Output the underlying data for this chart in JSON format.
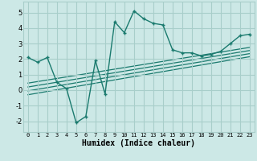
{
  "xlabel": "Humidex (Indice chaleur)",
  "bg_color": "#cce8e6",
  "grid_color": "#a8ceca",
  "line_color": "#1a7a6e",
  "xlim": [
    -0.5,
    23.5
  ],
  "ylim": [
    -2.7,
    5.7
  ],
  "xticks": [
    0,
    1,
    2,
    3,
    4,
    5,
    6,
    7,
    8,
    9,
    10,
    11,
    12,
    13,
    14,
    15,
    16,
    17,
    18,
    19,
    20,
    21,
    22,
    23
  ],
  "yticks": [
    -2,
    -1,
    0,
    1,
    2,
    3,
    4,
    5
  ],
  "main_line_x": [
    0,
    1,
    2,
    3,
    4,
    5,
    6,
    7,
    8,
    9,
    10,
    11,
    12,
    13,
    14,
    15,
    16,
    17,
    18,
    19,
    20,
    21,
    22,
    23
  ],
  "main_line_y": [
    2.1,
    1.8,
    2.1,
    0.5,
    0.1,
    -2.1,
    -1.7,
    1.9,
    -0.25,
    4.4,
    3.7,
    5.1,
    4.6,
    4.3,
    4.2,
    2.6,
    2.4,
    2.4,
    2.2,
    2.3,
    2.5,
    3.0,
    3.5,
    3.6
  ],
  "reg_lines": [
    {
      "x": [
        0,
        23
      ],
      "y": [
        -0.3,
        2.15
      ]
    },
    {
      "x": [
        0,
        23
      ],
      "y": [
        -0.05,
        2.35
      ]
    },
    {
      "x": [
        0,
        23
      ],
      "y": [
        0.2,
        2.55
      ]
    },
    {
      "x": [
        0,
        23
      ],
      "y": [
        0.45,
        2.75
      ]
    }
  ],
  "xlabel_fontsize": 7,
  "ytick_fontsize": 6,
  "xtick_fontsize": 5
}
